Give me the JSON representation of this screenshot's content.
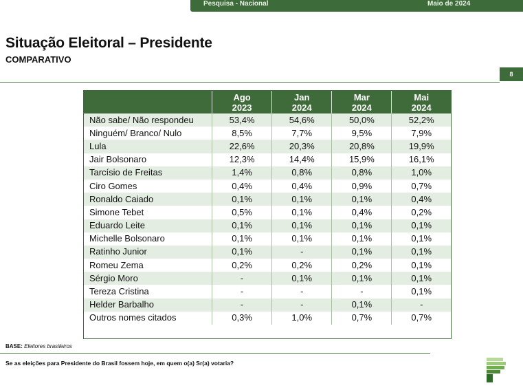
{
  "header": {
    "survey": "Pesquisa - Nacional",
    "date": "Maio de 2024"
  },
  "title": "Situação Eleitoral – Presidente",
  "subtitle": "COMPARATIVO",
  "page_number": "8",
  "table": {
    "columns": [
      {
        "line1": "Ago",
        "line2": "2023"
      },
      {
        "line1": "Jan",
        "line2": "2024"
      },
      {
        "line1": "Mar",
        "line2": "2024"
      },
      {
        "line1": "Mai",
        "line2": "2024"
      }
    ],
    "rows": [
      {
        "name": "Não sabe/ Não respondeu",
        "values": [
          "53,4%",
          "54,6%",
          "50,0%",
          "52,2%"
        ]
      },
      {
        "name": "Ninguém/ Branco/ Nulo",
        "values": [
          "8,5%",
          "7,7%",
          "9,5%",
          "7,9%"
        ]
      },
      {
        "name": "Lula",
        "values": [
          "22,6%",
          "20,3%",
          "20,8%",
          "19,9%"
        ]
      },
      {
        "name": "Jair Bolsonaro",
        "values": [
          "12,3%",
          "14,4%",
          "15,9%",
          "16,1%"
        ]
      },
      {
        "name": "Tarcísio de Freitas",
        "values": [
          "1,4%",
          "0,8%",
          "0,8%",
          "1,0%"
        ]
      },
      {
        "name": "Ciro Gomes",
        "values": [
          "0,4%",
          "0,4%",
          "0,9%",
          "0,7%"
        ]
      },
      {
        "name": "Ronaldo Caiado",
        "values": [
          "0,1%",
          "0,1%",
          "0,1%",
          "0,4%"
        ]
      },
      {
        "name": "Simone Tebet",
        "values": [
          "0,5%",
          "0,1%",
          "0,4%",
          "0,2%"
        ]
      },
      {
        "name": "Eduardo Leite",
        "values": [
          "0,1%",
          "0,1%",
          "0,1%",
          "0,1%"
        ]
      },
      {
        "name": "Michelle Bolsonaro",
        "values": [
          "0,1%",
          "0,1%",
          "0,1%",
          "0,1%"
        ]
      },
      {
        "name": "Ratinho Junior",
        "values": [
          "0,1%",
          "-",
          "0,1%",
          "0,1%"
        ]
      },
      {
        "name": "Romeu Zema",
        "values": [
          "0,2%",
          "0,2%",
          "0,2%",
          "0,1%"
        ]
      },
      {
        "name": "Sérgio Moro",
        "values": [
          "-",
          "0,1%",
          "0,1%",
          "0,1%"
        ]
      },
      {
        "name": "Tereza Cristina",
        "values": [
          "-",
          "-",
          "-",
          "0,1%"
        ]
      },
      {
        "name": "Helder Barbalho",
        "values": [
          "-",
          "-",
          "0,1%",
          "-"
        ]
      },
      {
        "name": "Outros nomes citados",
        "values": [
          "0,3%",
          "1,0%",
          "0,7%",
          "0,7%"
        ]
      }
    ]
  },
  "base": {
    "label": "BASE:",
    "text": "Eleitores brasileiros"
  },
  "question": "Se as eleições para Presidente do Brasil fossem hoje, em quem o(a) Sr(a) votaria?",
  "colors": {
    "brand_green": "#3e6b3a",
    "row_tint": "#e3ede1"
  },
  "icons": [
    "logo-icon"
  ]
}
